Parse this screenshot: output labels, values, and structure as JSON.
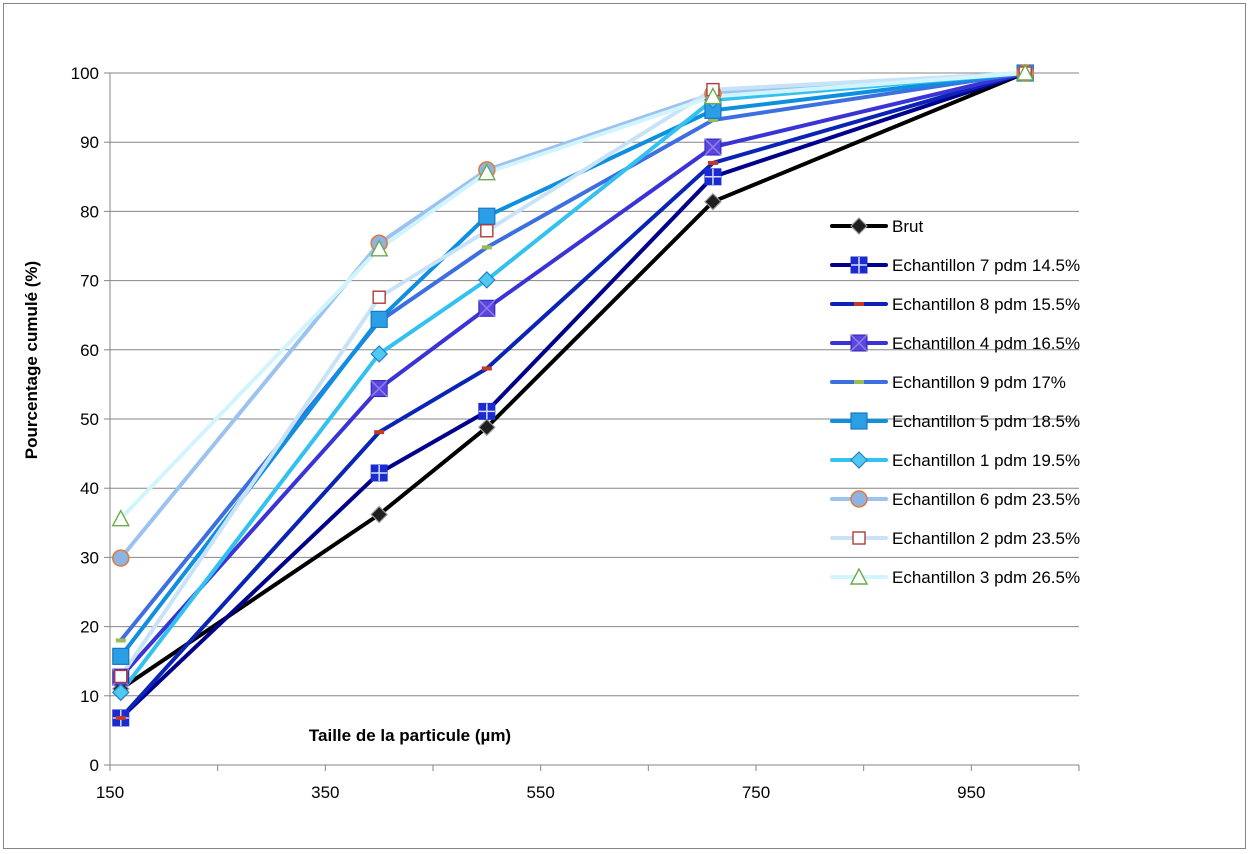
{
  "chart_data": {
    "type": "line",
    "title": "",
    "xlabel": "Taille de la particule (µm)",
    "ylabel": "Pourcentage cumulé (%)",
    "xlim": [
      150,
      1050
    ],
    "ylim": [
      0,
      100
    ],
    "xticks": [
      150,
      350,
      550,
      750,
      950
    ],
    "yticks": [
      0,
      10,
      20,
      30,
      40,
      50,
      60,
      70,
      80,
      90,
      100
    ],
    "grid": "horizontal",
    "legend_position": "right",
    "x": [
      160,
      400,
      500,
      710,
      1000
    ],
    "series": [
      {
        "name": "Brut",
        "values": [
          11,
          36.2,
          48.8,
          81.4,
          100
        ],
        "color": "#000000",
        "marker": "diamond",
        "marker_fill": "#1f1f1f",
        "marker_stroke": "#999999",
        "line_width": 4
      },
      {
        "name": "Echantillon 7 pdm 14.5%",
        "values": [
          6.8,
          42.2,
          51.1,
          85,
          100
        ],
        "color": "#00008b",
        "marker": "square-cross",
        "marker_fill": "#1a2ccf",
        "marker_stroke": "#1a2ccf",
        "line_width": 4
      },
      {
        "name": "Echantillon 8 pdm 15.5%",
        "values": [
          6.8,
          48.1,
          57.3,
          87,
          100
        ],
        "color": "#0a24b5",
        "marker": "dash",
        "marker_fill": "#c0392b",
        "marker_stroke": "#c0392b",
        "line_width": 4
      },
      {
        "name": "Echantillon 4 pdm 16.5%",
        "values": [
          12.7,
          54.4,
          66,
          89.3,
          100
        ],
        "color": "#3a33d6",
        "marker": "square-x",
        "marker_fill": "#5b45e0",
        "marker_stroke": "#2d24b0",
        "line_width": 4
      },
      {
        "name": "Echantillon 9 pdm 17%",
        "values": [
          18,
          64.1,
          74.8,
          93.2,
          100
        ],
        "color": "#3d6fe0",
        "marker": "dash",
        "marker_fill": "#9bbb59",
        "marker_stroke": "#9bbb59",
        "line_width": 4
      },
      {
        "name": "Echantillon 5 pdm 18.5%",
        "values": [
          15.7,
          64.4,
          79.3,
          94.6,
          100
        ],
        "color": "#0f8fe0",
        "marker": "square",
        "marker_fill": "#2a9fe6",
        "marker_stroke": "#1779c4",
        "line_width": 4
      },
      {
        "name": "Echantillon 1 pdm 19.5%",
        "values": [
          10.5,
          59.4,
          70.1,
          96.1,
          100
        ],
        "color": "#33c1ef",
        "marker": "diamond",
        "marker_fill": "#4fc9ef",
        "marker_stroke": "#2a7fc4",
        "line_width": 4
      },
      {
        "name": "Echantillon 6  pdm 23.5%",
        "values": [
          29.9,
          75.4,
          86,
          97,
          100
        ],
        "color": "#9cc3ef",
        "marker": "circle",
        "marker_fill": "#8db3e2",
        "marker_stroke": "#e07a3c",
        "line_width": 4
      },
      {
        "name": "Echantillon 2 pdm 23.5%",
        "values": [
          12.8,
          67.6,
          77.2,
          97.6,
          100
        ],
        "color": "#c8e3f8",
        "marker": "square-open",
        "marker_fill": "#ffffff",
        "marker_stroke": "#b03a3a",
        "line_width": 4
      },
      {
        "name": "Echantillon 3 pdm 26.5%",
        "values": [
          35.6,
          74.6,
          85.6,
          96.6,
          100
        ],
        "color": "#d2f4fc",
        "marker": "triangle",
        "marker_fill": "#ffffff",
        "marker_stroke": "#6bab4a",
        "line_width": 4
      }
    ]
  }
}
